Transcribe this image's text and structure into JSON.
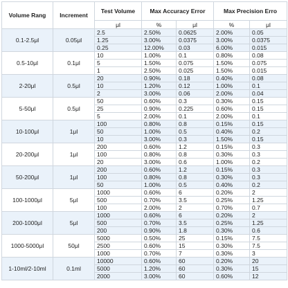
{
  "header": {
    "columns": [
      "Volume Rang",
      "Increment",
      "Test Volume",
      "Max Accuracy Error",
      "Max Precision Erro"
    ],
    "units": [
      "μl",
      "%",
      "μl",
      "%",
      "μl"
    ]
  },
  "groups": [
    {
      "range": "0.1-2.5μl",
      "increment": "0.05μl",
      "rows": [
        [
          "2.5",
          "2.50%",
          "0.0625",
          "2.00%",
          "0.05"
        ],
        [
          "1.25",
          "3.00%",
          "0.0375",
          "3.00%",
          "0.0375"
        ],
        [
          "0.25",
          "12.00%",
          "0.03",
          "6.00%",
          "0.015"
        ]
      ]
    },
    {
      "range": "0.5-10μl",
      "increment": "0.1μl",
      "rows": [
        [
          "10",
          "1.00%",
          "0.1",
          "0.80%",
          "0.08"
        ],
        [
          "5",
          "1.50%",
          "0.075",
          "1.50%",
          "0.075"
        ],
        [
          "1",
          "2.50%",
          "0.025",
          "1.50%",
          "0.015"
        ]
      ]
    },
    {
      "range": "2-20μl",
      "increment": "0.5μl",
      "rows": [
        [
          "20",
          "0.90%",
          "0.18",
          "0.40%",
          "0.08"
        ],
        [
          "10",
          "1.20%",
          "0.12",
          "1.00%",
          "0.1"
        ],
        [
          "2",
          "3.00%",
          "0.06",
          "2.00%",
          "0.04"
        ]
      ]
    },
    {
      "range": "5-50μl",
      "increment": "0.5μl",
      "rows": [
        [
          "50",
          "0.60%",
          "0.3",
          "0.30%",
          "0.15"
        ],
        [
          "25",
          "0.90%",
          "0.225",
          "0.60%",
          "0.15"
        ],
        [
          "5",
          "2.00%",
          "0.1",
          "2.00%",
          "0.1"
        ]
      ]
    },
    {
      "range": "10-100μl",
      "increment": "1μl",
      "rows": [
        [
          "100",
          "0.80%",
          "0.8",
          "0.15%",
          "0.15"
        ],
        [
          "50",
          "1.00%",
          "0.5",
          "0.40%",
          "0.2"
        ],
        [
          "10",
          "3.00%",
          "0.3",
          "1.50%",
          "0.15"
        ]
      ]
    },
    {
      "range": "20-200μl",
      "increment": "1μl",
      "rows": [
        [
          "200",
          "0.60%",
          "1.2",
          "0.15%",
          "0.3"
        ],
        [
          "100",
          "0.80%",
          "0.8",
          "0.30%",
          "0.3"
        ],
        [
          "20",
          "3.00%",
          "0.6",
          "1.00%",
          "0.2"
        ]
      ]
    },
    {
      "range": "50-200μl",
      "increment": "1μl",
      "rows": [
        [
          "200",
          "0.60%",
          "1.2",
          "0.15%",
          "0.3"
        ],
        [
          "100",
          "0.80%",
          "0.8",
          "0.30%",
          "0.3"
        ],
        [
          "50",
          "1.00%",
          "0.5",
          "0.40%",
          "0.2"
        ]
      ]
    },
    {
      "range": "100-1000μl",
      "increment": "5μl",
      "rows": [
        [
          "1000",
          "0.60%",
          "6",
          "0.20%",
          "2"
        ],
        [
          "500",
          "0.70%",
          "3.5",
          "0.25%",
          "1.25"
        ],
        [
          "100",
          "2.00%",
          "2",
          "0.70%",
          "0.7"
        ]
      ]
    },
    {
      "range": "200-1000μl",
      "increment": "5μl",
      "rows": [
        [
          "1000",
          "0.60%",
          "6",
          "0.20%",
          "2"
        ],
        [
          "500",
          "0.70%",
          "3.5",
          "0.25%",
          "1.25"
        ],
        [
          "200",
          "0.90%",
          "1.8",
          "0.30%",
          "0.6"
        ]
      ]
    },
    {
      "range": "1000-5000μl",
      "increment": "50μl",
      "rows": [
        [
          "5000",
          "0.50%",
          "25",
          "0.15%",
          "7.5"
        ],
        [
          "2500",
          "0.60%",
          "15",
          "0.30%",
          "7.5"
        ],
        [
          "1000",
          "0.70%",
          "7",
          "0.30%",
          "3"
        ]
      ]
    },
    {
      "range": "1-10ml/2-10ml",
      "increment": "0.1ml",
      "rows": [
        [
          "10000",
          "0.60%",
          "60",
          "0.20%",
          "20"
        ],
        [
          "5000",
          "1.20%",
          "60",
          "0.30%",
          "15"
        ],
        [
          "2000",
          "3.00%",
          "60",
          "0.60%",
          "12"
        ]
      ]
    }
  ]
}
